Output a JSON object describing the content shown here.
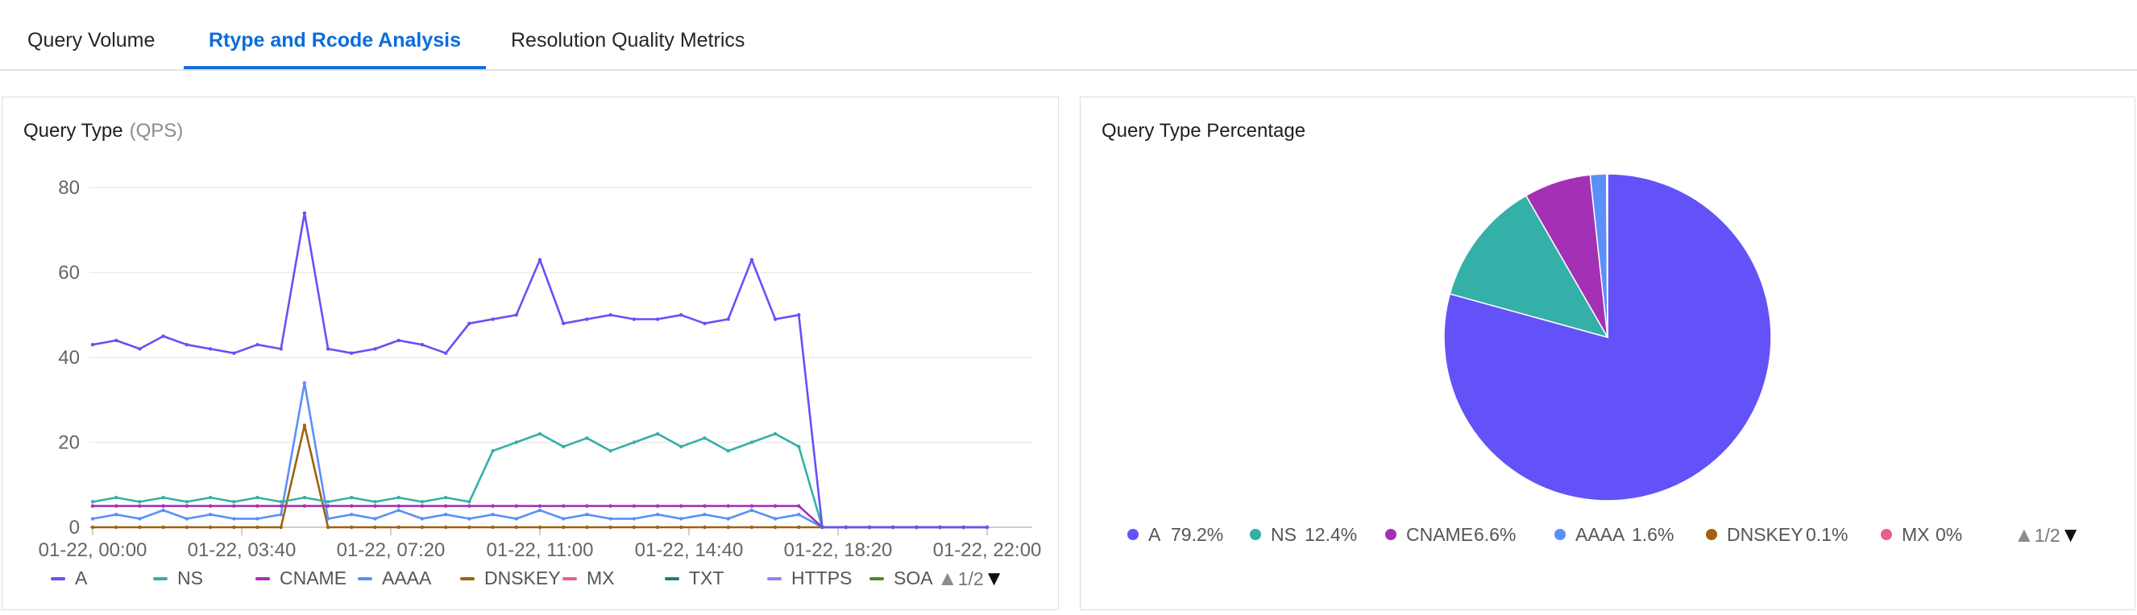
{
  "tabs": [
    {
      "label": "Query Volume",
      "active": false
    },
    {
      "label": "Rtype and Rcode Analysis",
      "active": true
    },
    {
      "label": "Resolution Quality Metrics",
      "active": false
    }
  ],
  "left_panel": {
    "title": "Query Type",
    "unit": "(QPS)",
    "pager": "1/2"
  },
  "right_panel": {
    "title": "Query Type Percentage",
    "pager": "1/2"
  },
  "colors": {
    "A": "#6352f7",
    "NS": "#34b0a8",
    "CNAME": "#a431b5",
    "AAAA": "#5b8ff9",
    "DNSKEY": "#a0620e",
    "MX": "#e8608b",
    "TXT": "#1a7f7a",
    "HTTPS": "#9b7cf5",
    "SOA": "#4d8a1c"
  },
  "chart_data": [
    {
      "type": "line",
      "title": "Query Type",
      "ylabel": "(QPS)",
      "ylim": [
        0,
        80
      ],
      "yticks": [
        "80",
        "60",
        "40",
        "20",
        "0"
      ],
      "xticks": [
        "01-22, 00:00",
        "01-22, 03:40",
        "01-22, 07:20",
        "01-22, 11:00",
        "01-22, 14:40",
        "01-22, 18:20",
        "01-22, 22:00"
      ],
      "series": [
        {
          "name": "A",
          "values": [
            43,
            44,
            42,
            45,
            43,
            42,
            41,
            43,
            42,
            74,
            42,
            41,
            42,
            44,
            43,
            41,
            48,
            49,
            50,
            63,
            48,
            49,
            50,
            49,
            49,
            50,
            48,
            49,
            63,
            49,
            50,
            0,
            0,
            0,
            0,
            0,
            0,
            0,
            0
          ]
        },
        {
          "name": "NS",
          "values": [
            6,
            7,
            6,
            7,
            6,
            7,
            6,
            7,
            6,
            7,
            6,
            7,
            6,
            7,
            6,
            7,
            6,
            18,
            20,
            22,
            19,
            21,
            18,
            20,
            22,
            19,
            21,
            18,
            20,
            22,
            19,
            0,
            0,
            0,
            0,
            0,
            0,
            0,
            0
          ]
        },
        {
          "name": "CNAME",
          "values": [
            5,
            5,
            5,
            5,
            5,
            5,
            5,
            5,
            5,
            5,
            5,
            5,
            5,
            5,
            5,
            5,
            5,
            5,
            5,
            5,
            5,
            5,
            5,
            5,
            5,
            5,
            5,
            5,
            5,
            5,
            5,
            0,
            0,
            0,
            0,
            0,
            0,
            0,
            0
          ]
        },
        {
          "name": "AAAA",
          "values": [
            2,
            3,
            2,
            4,
            2,
            3,
            2,
            2,
            3,
            34,
            2,
            3,
            2,
            4,
            2,
            3,
            2,
            3,
            2,
            4,
            2,
            3,
            2,
            2,
            3,
            2,
            3,
            2,
            4,
            2,
            3,
            0,
            0,
            0,
            0,
            0,
            0,
            0,
            0
          ]
        },
        {
          "name": "DNSKEY",
          "values": [
            0,
            0,
            0,
            0,
            0,
            0,
            0,
            0,
            0,
            24,
            0,
            0,
            0,
            0,
            0,
            0,
            0,
            0,
            0,
            0,
            0,
            0,
            0,
            0,
            0,
            0,
            0,
            0,
            0,
            0,
            0,
            0,
            0,
            0,
            0,
            0,
            0,
            0,
            0
          ]
        },
        {
          "name": "MX",
          "values": []
        },
        {
          "name": "TXT",
          "values": []
        },
        {
          "name": "HTTPS",
          "values": []
        },
        {
          "name": "SOA",
          "values": []
        }
      ]
    },
    {
      "type": "pie",
      "title": "Query Type Percentage",
      "slices": [
        {
          "name": "A",
          "value": 79.2,
          "label": "79.2%"
        },
        {
          "name": "NS",
          "value": 12.4,
          "label": "12.4%"
        },
        {
          "name": "CNAME",
          "value": 6.6,
          "label": "6.6%"
        },
        {
          "name": "AAAA",
          "value": 1.6,
          "label": "1.6%"
        },
        {
          "name": "DNSKEY",
          "value": 0.1,
          "label": "0.1%"
        },
        {
          "name": "MX",
          "value": 0,
          "label": "0%"
        }
      ]
    }
  ]
}
